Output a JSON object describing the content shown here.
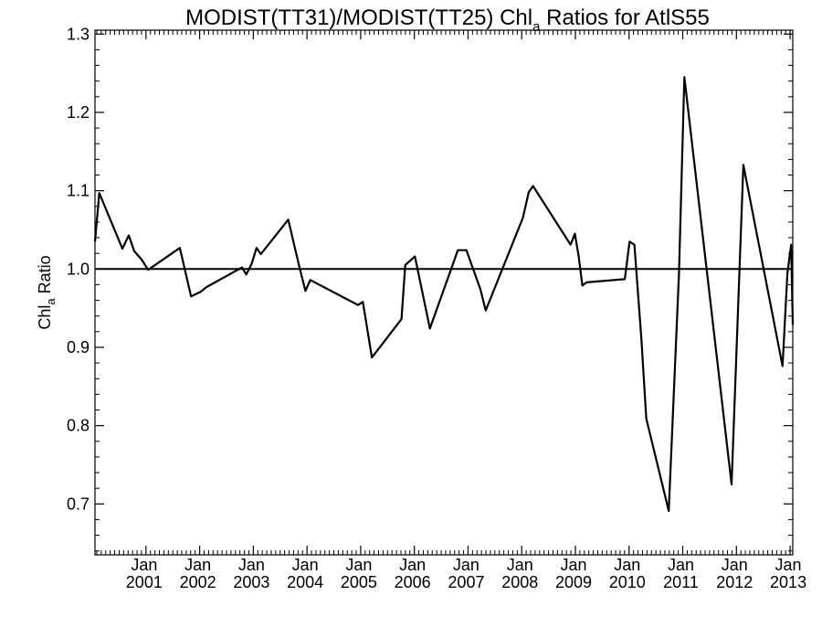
{
  "chart_data": {
    "type": "line",
    "title_main": "MODIST(TT31)/MODIST(TT25)  Chl",
    "title_sub": "a",
    "title_tail": " Ratios for AtlS55",
    "ylabel_main": "Chl",
    "ylabel_sub": "a",
    "ylabel_tail": " Ratio",
    "ylim": [
      0.635,
      1.305
    ],
    "xlim": [
      2000.05,
      2013.05
    ],
    "yticks": [
      0.7,
      0.8,
      0.9,
      1.0,
      1.1,
      1.2,
      1.3
    ],
    "ytick_labels": [
      "0.7",
      "0.8",
      "0.9",
      "1.0",
      "1.1",
      "1.2",
      "1.3"
    ],
    "xticks": [
      {
        "x": 2001.0,
        "month": "Jan",
        "year": "2001"
      },
      {
        "x": 2002.0,
        "month": "Jan",
        "year": "2002"
      },
      {
        "x": 2003.0,
        "month": "Jan",
        "year": "2003"
      },
      {
        "x": 2004.0,
        "month": "Jan",
        "year": "2004"
      },
      {
        "x": 2005.0,
        "month": "Jan",
        "year": "2005"
      },
      {
        "x": 2006.0,
        "month": "Jan",
        "year": "2006"
      },
      {
        "x": 2007.0,
        "month": "Jan",
        "year": "2007"
      },
      {
        "x": 2008.0,
        "month": "Jan",
        "year": "2008"
      },
      {
        "x": 2009.0,
        "month": "Jan",
        "year": "2009"
      },
      {
        "x": 2010.0,
        "month": "Jan",
        "year": "2010"
      },
      {
        "x": 2011.0,
        "month": "Jan",
        "year": "2011"
      },
      {
        "x": 2012.0,
        "month": "Jan",
        "year": "2012"
      },
      {
        "x": 2013.0,
        "month": "Jan",
        "year": "2013"
      }
    ],
    "reference_line": 1.0,
    "series": [
      {
        "x": [
          2000.05,
          2000.13,
          2000.56,
          2000.68,
          2000.78,
          2000.92,
          2001.04,
          2001.63,
          2001.84,
          2002.02,
          2002.13,
          2002.79,
          2002.87,
          2002.97,
          2003.06,
          2003.14,
          2003.65,
          2003.85,
          2003.97,
          2004.06,
          2004.95,
          2005.04,
          2005.21,
          2005.76,
          2005.83,
          2006.01,
          2006.29,
          2006.81,
          2006.97,
          2007.23,
          2007.33,
          2008.02,
          2008.13,
          2008.21,
          2008.91,
          2008.99,
          2009.06,
          2009.13,
          2009.21,
          2009.92,
          2010.01,
          2010.1,
          2010.23,
          2010.32,
          2010.74,
          2010.93,
          2011.03,
          2011.91,
          2012.13,
          2012.86,
          2012.95,
          2013.02,
          2013.05
        ],
        "y": [
          1.035,
          1.097,
          1.026,
          1.043,
          1.023,
          1.012,
          0.999,
          1.027,
          0.965,
          0.971,
          0.977,
          1.002,
          0.993,
          1.007,
          1.027,
          1.019,
          1.063,
          1.005,
          0.972,
          0.986,
          0.954,
          0.958,
          0.887,
          0.936,
          1.005,
          1.016,
          0.924,
          1.024,
          1.024,
          0.974,
          0.947,
          1.065,
          1.098,
          1.106,
          1.031,
          1.045,
          1.017,
          0.979,
          0.983,
          0.987,
          1.035,
          1.031,
          0.91,
          0.809,
          0.691,
          0.994,
          1.245,
          0.725,
          1.133,
          0.876,
          0.994,
          1.031,
          0.929
        ]
      }
    ],
    "grid": false,
    "legend": "none"
  }
}
